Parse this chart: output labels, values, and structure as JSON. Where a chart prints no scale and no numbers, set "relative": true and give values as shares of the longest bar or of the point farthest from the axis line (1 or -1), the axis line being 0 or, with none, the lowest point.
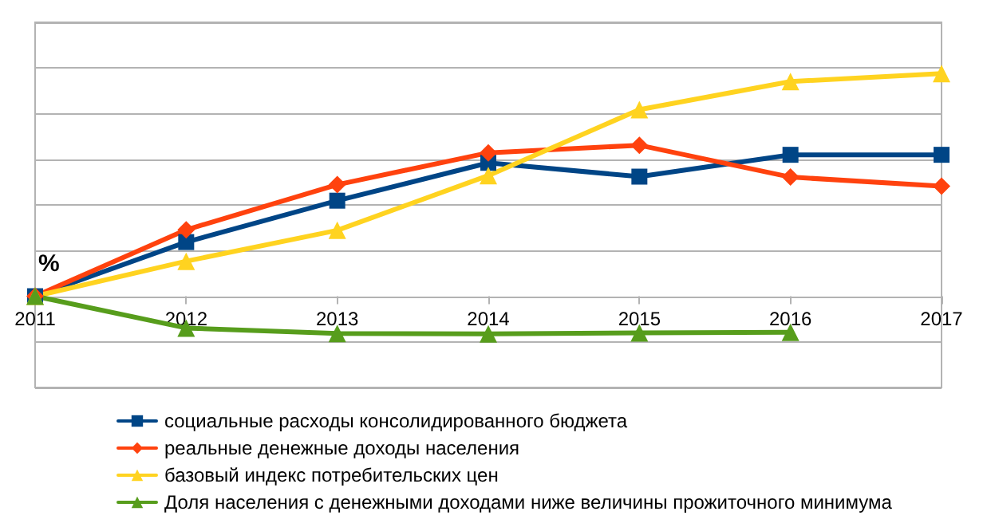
{
  "chart_data": {
    "type": "line",
    "relative": true,
    "categories": [
      "2011",
      "2012",
      "2013",
      "2014",
      "2015",
      "2016",
      "2017"
    ],
    "series": [
      {
        "name": "социальные расходы консолидированного бюджета",
        "color": "#004586",
        "marker": "square",
        "values": [
          0,
          0.243,
          0.429,
          0.599,
          0.537,
          0.635,
          0.635
        ]
      },
      {
        "name": "реальные денежные доходы населения",
        "color": "#ff420e",
        "marker": "diamond",
        "values": [
          0,
          0.298,
          0.501,
          0.644,
          0.678,
          0.535,
          0.494
        ]
      },
      {
        "name": "базовый индекс потребительских цен",
        "color": "#ffd320",
        "marker": "triangle",
        "values": [
          0,
          0.157,
          0.296,
          0.542,
          0.838,
          0.964,
          1
        ]
      },
      {
        "name": "Доля населения с денежными доходами ниже величины прожиточного минимума",
        "color": "#579d1c",
        "marker": "triangle",
        "values": [
          0,
          -0.143,
          -0.167,
          -0.169,
          -0.165,
          -0.162,
          null
        ]
      }
    ],
    "annotations": [
      "%"
    ],
    "grid": "y",
    "legend": "bottom",
    "line_style": "solid"
  }
}
